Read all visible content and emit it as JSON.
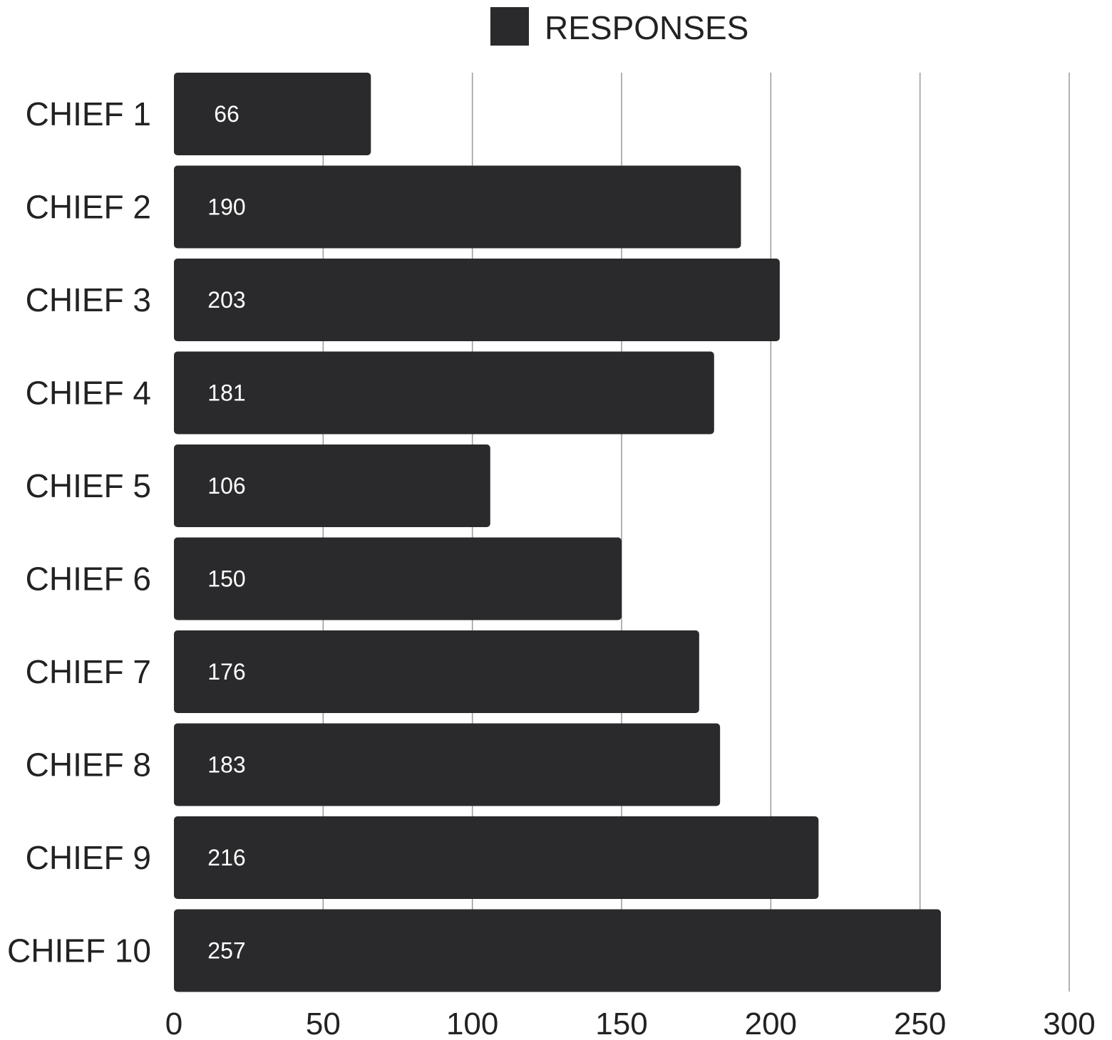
{
  "chart_data": {
    "type": "bar",
    "orientation": "horizontal",
    "categories": [
      "CHIEF 1",
      "CHIEF 2",
      "CHIEF 3",
      "CHIEF 4",
      "CHIEF 5",
      "CHIEF 6",
      "CHIEF 7",
      "CHIEF 8",
      "CHIEF 9",
      "CHIEF 10"
    ],
    "series": [
      {
        "name": "RESPONSES",
        "values": [
          66,
          190,
          203,
          181,
          106,
          150,
          176,
          183,
          216,
          257
        ],
        "color": "#2a2a2c"
      }
    ],
    "data_labels": [
      "66",
      "190",
      "203",
      "181",
      "106",
      "150",
      "176",
      "183",
      "216",
      "257"
    ],
    "xlim": [
      0,
      300
    ],
    "x_ticks": [
      0,
      50,
      100,
      150,
      200,
      250,
      300
    ],
    "x_tick_labels": [
      "0",
      "50",
      "100",
      "150",
      "200",
      "250",
      "300"
    ],
    "grid": "vertical",
    "legend_position": "top-center"
  }
}
